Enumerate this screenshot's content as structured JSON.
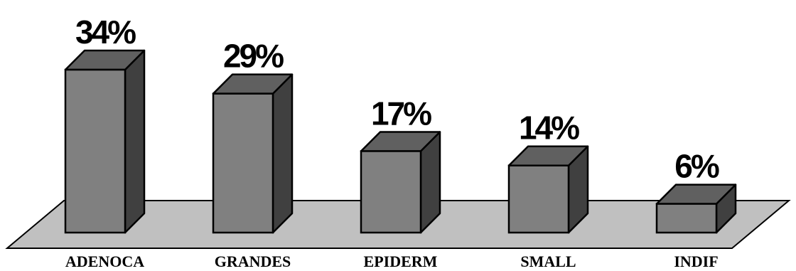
{
  "chart_data": {
    "type": "bar",
    "categories": [
      "ADENOCA",
      "GRANDES",
      "EPIDERM",
      "SMALL",
      "INDIF"
    ],
    "values": [
      34,
      29,
      17,
      14,
      6
    ],
    "data_labels": [
      "34%",
      "29%",
      "17%",
      "14%",
      "6%"
    ],
    "title": "",
    "xlabel": "",
    "ylabel": "",
    "ylim": [
      0,
      34
    ],
    "grid": false,
    "legend": "none",
    "style": "3d-column",
    "colors": {
      "bar_front": "#808080",
      "bar_top": "#606060",
      "bar_side": "#404040",
      "floor": "#c0c0c0",
      "outline": "#000000"
    }
  }
}
